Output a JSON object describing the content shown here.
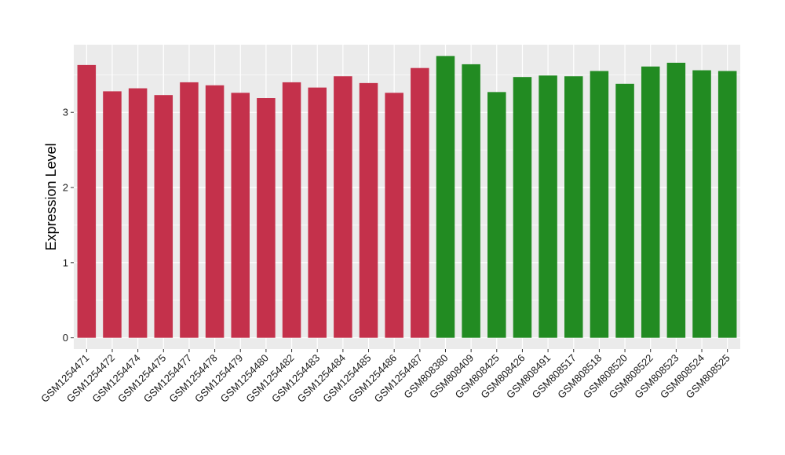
{
  "chart_data": {
    "type": "bar",
    "title": "",
    "xlabel": "",
    "ylabel": "Expression Level",
    "ylim": [
      -0.15,
      3.9
    ],
    "yticks": [
      0,
      1,
      2,
      3
    ],
    "grid": true,
    "legend": "none",
    "categories": [
      "GSM1254471",
      "GSM1254472",
      "GSM1254474",
      "GSM1254475",
      "GSM1254477",
      "GSM1254478",
      "GSM1254479",
      "GSM1254480",
      "GSM1254482",
      "GSM1254483",
      "GSM1254484",
      "GSM1254485",
      "GSM1254486",
      "GSM1254487",
      "GSM808380",
      "GSM808409",
      "GSM808425",
      "GSM808426",
      "GSM808491",
      "GSM808517",
      "GSM808518",
      "GSM808520",
      "GSM808522",
      "GSM808523",
      "GSM808524",
      "GSM808525"
    ],
    "values": [
      3.63,
      3.28,
      3.32,
      3.23,
      3.4,
      3.36,
      3.26,
      3.19,
      3.4,
      3.33,
      3.48,
      3.39,
      3.26,
      3.59,
      3.75,
      3.64,
      3.27,
      3.47,
      3.49,
      3.48,
      3.55,
      3.38,
      3.61,
      3.66,
      3.56,
      3.55
    ],
    "group_colors": [
      "#c4314b",
      "#228b22"
    ],
    "groups": [
      0,
      0,
      0,
      0,
      0,
      0,
      0,
      0,
      0,
      0,
      0,
      0,
      0,
      0,
      1,
      1,
      1,
      1,
      1,
      1,
      1,
      1,
      1,
      1,
      1,
      1
    ]
  },
  "style": {
    "panel_background": "#ebebeb",
    "grid_color": "#ffffff"
  }
}
